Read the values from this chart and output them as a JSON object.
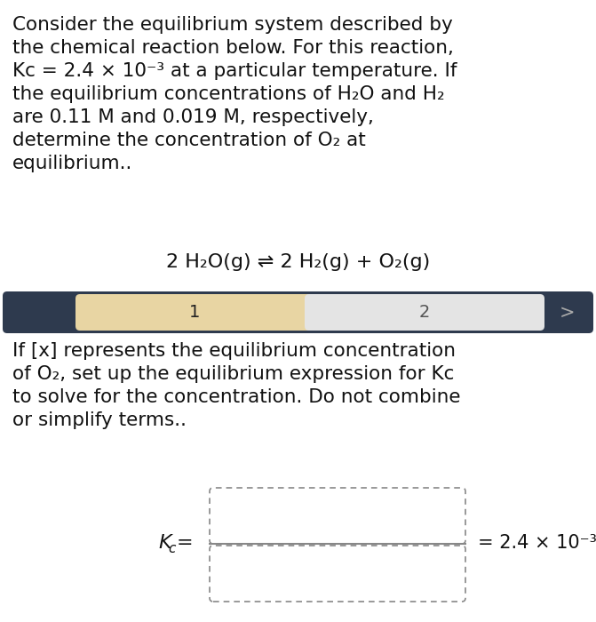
{
  "background_color": "#ffffff",
  "text_color": "#111111",
  "para1_lines": [
    "Consider the equilibrium system described by",
    "the chemical reaction below. For this reaction,",
    "Kc = 2.4 × 10⁻³ at a particular temperature. If",
    "the equilibrium concentrations of H₂O and H₂",
    "are 0.11 M and 0.019 M, respectively,",
    "determine the concentration of O₂ at",
    "equilibrium.."
  ],
  "reaction_text": "2 H₂O(g) ⇌ 2 H₂(g) + O₂(g)",
  "para2_lines": [
    "If [x] represents the equilibrium concentration",
    "of O₂, set up the equilibrium expression for Kc",
    "to solve for the concentration. Do not combine",
    "or simplify terms.."
  ],
  "nav_bar_bg": "#2e3a4e",
  "nav_bar_section1_bg": "#e8d5a3",
  "nav_bar_section2_bg": "#e4e4e4",
  "nav_bar_label1": "1",
  "nav_bar_label2": "2",
  "nav_arrow": ">",
  "kc_label": "K",
  "kc_sub": "c",
  "kc_eq": "=",
  "kc_value": "= 2.4 × 10⁻³",
  "box_border_color": "#888888",
  "fraction_line_color": "#888888"
}
